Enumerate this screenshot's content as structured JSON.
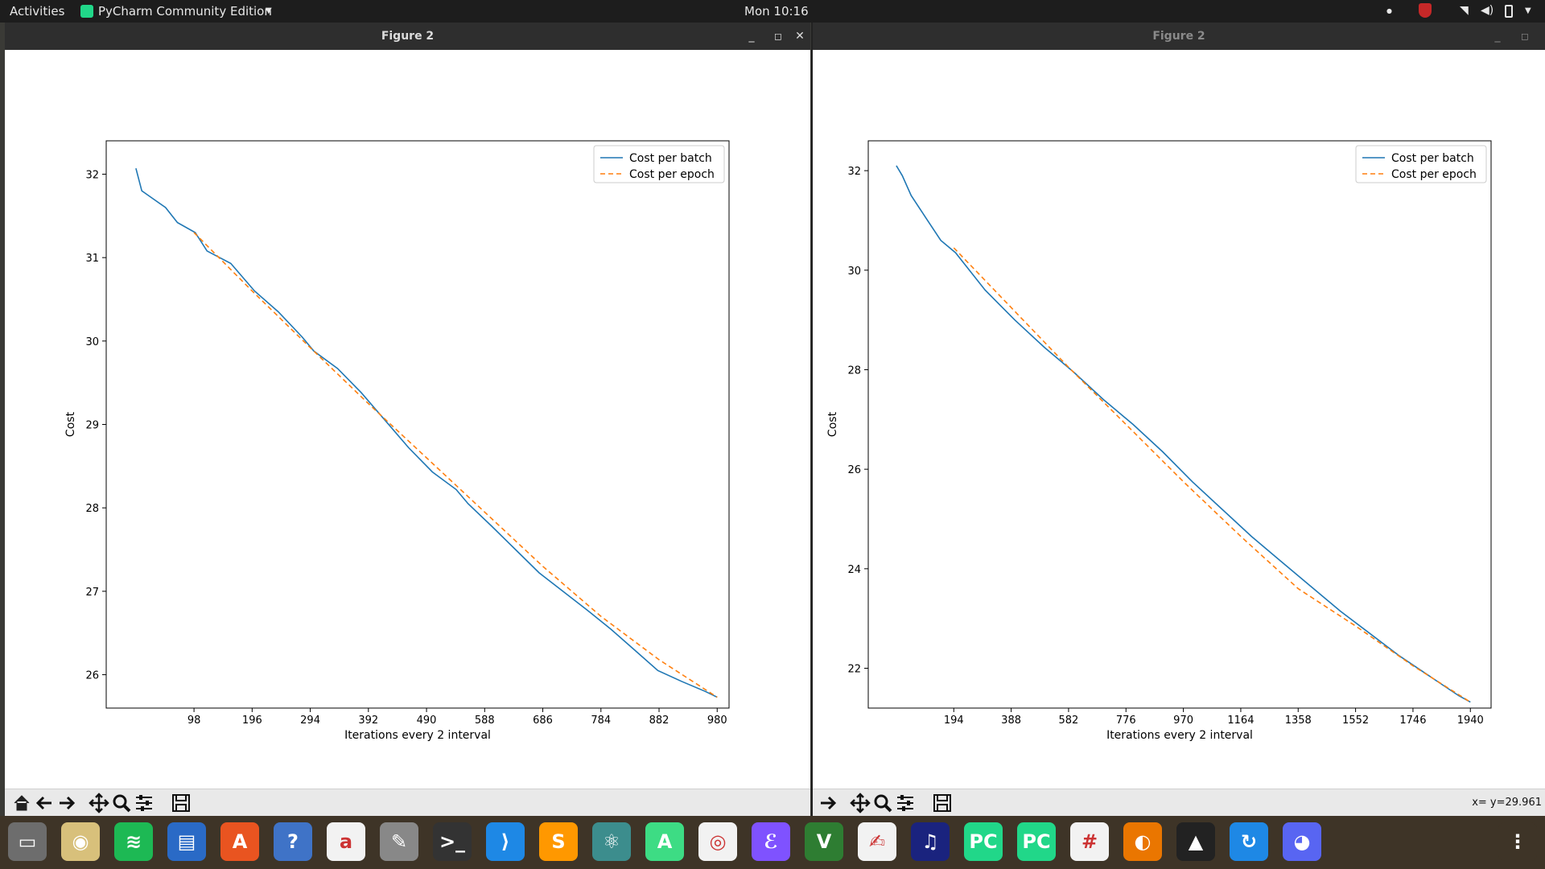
{
  "topbar": {
    "activities": "Activities",
    "app_name": "PyCharm Community Edition",
    "clock": "Mon 10:16"
  },
  "windows": [
    {
      "title": "Figure 2",
      "active": true,
      "status": ""
    },
    {
      "title": "Figure 2",
      "active": false,
      "status": "x= y=29.961"
    }
  ],
  "toolbar_icons": [
    "home-icon",
    "back-icon",
    "forward-icon",
    "pan-icon",
    "zoom-icon",
    "configure-subplots-icon",
    "save-icon"
  ],
  "dock_icons": [
    "files-icon",
    "rhythmbox-icon",
    "spotify-icon",
    "libreoffice-writer-icon",
    "software-center-icon",
    "help-icon",
    "amazon-icon",
    "settings-icon",
    "terminal-icon",
    "vscode-icon",
    "sublime-text-icon",
    "atom-icon",
    "android-studio-icon",
    "chrome-icon",
    "emacs-icon",
    "vim-icon",
    "document-viewer-icon",
    "audacity-icon",
    "pycharm-icon",
    "pycharm-active-icon",
    "slack-icon",
    "blender-icon",
    "inkscape-icon",
    "ubuntu-software-icon",
    "discord-icon",
    "show-apps-icon"
  ],
  "chart_data": [
    {
      "type": "line",
      "xlabel": "Iterations every 2 interval",
      "ylabel": "Cost",
      "x_ticks": [
        98,
        196,
        294,
        392,
        490,
        588,
        686,
        784,
        882,
        980
      ],
      "y_ticks": [
        26,
        27,
        28,
        29,
        30,
        31,
        32
      ],
      "xlim": [
        -50,
        1000
      ],
      "ylim": [
        25.6,
        32.4
      ],
      "grid": false,
      "legend_position": "top-right",
      "series": [
        {
          "name": "Cost per batch",
          "style": "solid",
          "color": "#1f77b4",
          "x": [
            0,
            10,
            20,
            50,
            70,
            100,
            120,
            160,
            200,
            240,
            280,
            300,
            340,
            380,
            420,
            460,
            500,
            540,
            560,
            600,
            640,
            680,
            720,
            760,
            800,
            840,
            880,
            920,
            960,
            980
          ],
          "y": [
            32.07,
            31.8,
            31.75,
            31.6,
            31.42,
            31.3,
            31.08,
            30.93,
            30.6,
            30.35,
            30.05,
            29.88,
            29.67,
            29.38,
            29.05,
            28.72,
            28.43,
            28.22,
            28.05,
            27.78,
            27.5,
            27.22,
            27.0,
            26.78,
            26.55,
            26.3,
            26.05,
            25.92,
            25.8,
            25.73
          ]
        },
        {
          "name": "Cost per epoch",
          "style": "dashed",
          "color": "#ff7f0e",
          "x": [
            98,
            196,
            294,
            392,
            490,
            588,
            686,
            784,
            882,
            980
          ],
          "y": [
            31.3,
            30.6,
            29.92,
            29.25,
            28.6,
            27.95,
            27.3,
            26.7,
            26.18,
            25.73
          ]
        }
      ]
    },
    {
      "type": "line",
      "xlabel": "Iterations every 2 interval",
      "ylabel": "Cost",
      "x_ticks": [
        194,
        388,
        582,
        776,
        970,
        1164,
        1358,
        1552,
        1746,
        1940
      ],
      "y_ticks": [
        22,
        24,
        26,
        28,
        30,
        32
      ],
      "xlim": [
        -95,
        2010
      ],
      "ylim": [
        21.2,
        32.6
      ],
      "grid": false,
      "legend_position": "top-right",
      "series": [
        {
          "name": "Cost per batch",
          "style": "solid",
          "color": "#1f77b4",
          "x": [
            0,
            20,
            50,
            100,
            150,
            200,
            300,
            400,
            500,
            600,
            700,
            800,
            900,
            1000,
            1100,
            1200,
            1300,
            1400,
            1500,
            1600,
            1700,
            1800,
            1900,
            1940
          ],
          "y": [
            32.1,
            31.9,
            31.5,
            31.05,
            30.6,
            30.35,
            29.6,
            29.0,
            28.45,
            27.95,
            27.4,
            26.9,
            26.35,
            25.75,
            25.2,
            24.65,
            24.15,
            23.65,
            23.15,
            22.7,
            22.25,
            21.85,
            21.45,
            21.32
          ]
        },
        {
          "name": "Cost per epoch",
          "style": "dashed",
          "color": "#ff7f0e",
          "x": [
            194,
            388,
            582,
            776,
            970,
            1164,
            1358,
            1552,
            1746,
            1940
          ],
          "y": [
            30.45,
            29.25,
            28.05,
            26.9,
            25.75,
            24.65,
            23.6,
            22.85,
            22.05,
            21.32
          ]
        }
      ]
    }
  ]
}
